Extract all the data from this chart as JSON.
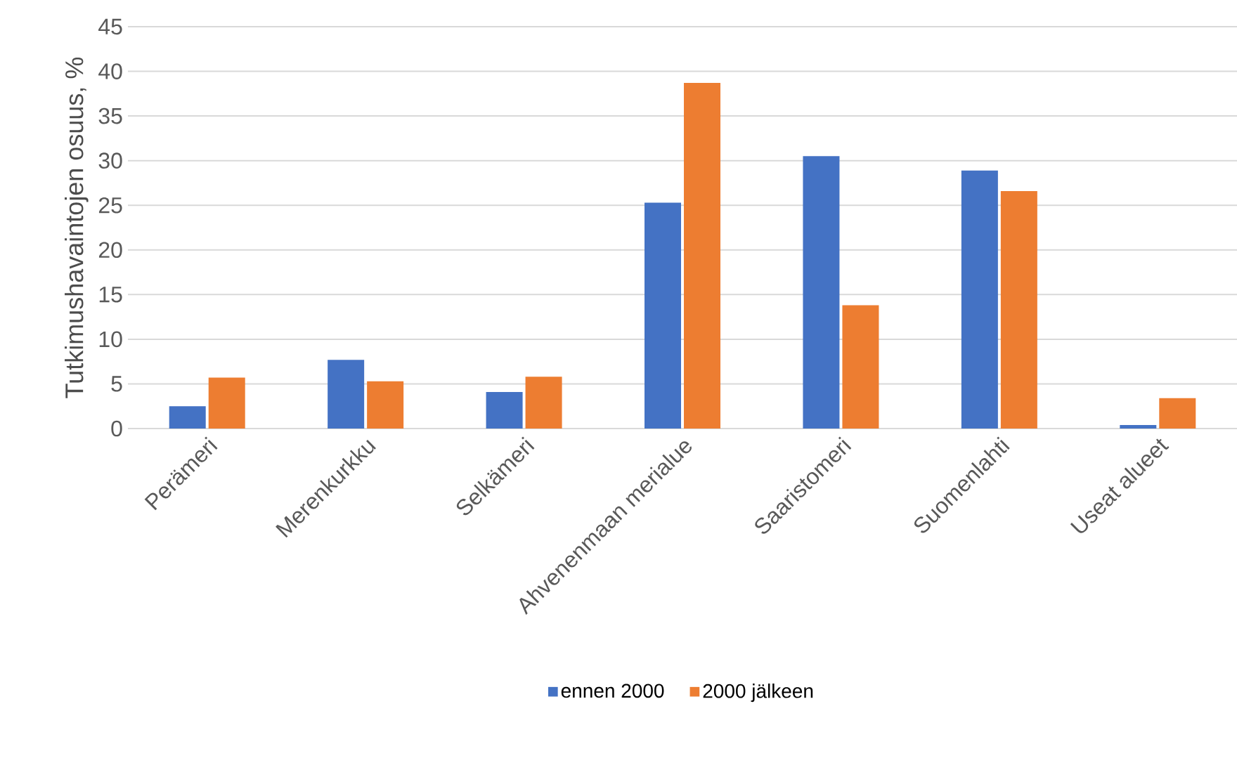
{
  "chart_data": {
    "type": "bar",
    "ylabel": "Tutkimushavaintojen osuus, %",
    "categories": [
      "Perämeri",
      "Merenkurkku",
      "Selkämeri",
      "Ahvenenmaan merialue",
      "Saaristomeri",
      "Suomenlahti",
      "Useat alueet"
    ],
    "series": [
      {
        "name": "ennen 2000",
        "color": "#4472c4",
        "values": [
          2.5,
          7.7,
          4.1,
          25.3,
          30.5,
          28.9,
          0.4
        ]
      },
      {
        "name": "2000 jälkeen",
        "color": "#ed7d31",
        "values": [
          5.7,
          5.3,
          5.8,
          38.7,
          13.8,
          26.6,
          3.4
        ]
      }
    ],
    "ylim": [
      0,
      45
    ],
    "yticks": [
      0,
      5,
      10,
      15,
      20,
      25,
      30,
      35,
      40,
      45
    ],
    "grid": "y",
    "legend": "bottom"
  }
}
